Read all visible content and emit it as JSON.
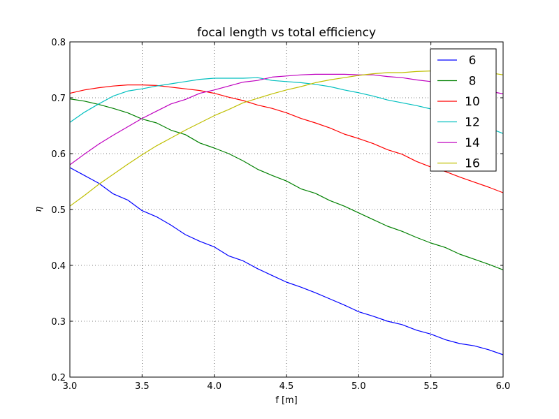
{
  "chart_data": {
    "type": "line",
    "title": "focal length vs total efficiency",
    "xlabel": "f [m]",
    "ylabel": "η",
    "xlim": [
      3.0,
      6.0
    ],
    "ylim": [
      0.2,
      0.8
    ],
    "xticks": [
      "3.0",
      "3.5",
      "4.0",
      "4.5",
      "5.0",
      "5.5",
      "6.0"
    ],
    "yticks": [
      "0.2",
      "0.3",
      "0.4",
      "0.5",
      "0.6",
      "0.7",
      "0.8"
    ],
    "grid": true,
    "legend_position": "top-right",
    "x": [
      3.0,
      3.1,
      3.2,
      3.3,
      3.4,
      3.5,
      3.6,
      3.7,
      3.8,
      3.9,
      4.0,
      4.1,
      4.2,
      4.3,
      4.4,
      4.5,
      4.6,
      4.7,
      4.8,
      4.9,
      5.0,
      5.1,
      5.2,
      5.3,
      5.4,
      5.5,
      5.6,
      5.7,
      5.8,
      5.9,
      6.0
    ],
    "series": [
      {
        "name": "6",
        "color": "#0000ff",
        "values": [
          0.575,
          0.561,
          0.547,
          0.528,
          0.517,
          0.498,
          0.487,
          0.472,
          0.455,
          0.443,
          0.433,
          0.417,
          0.408,
          0.394,
          0.382,
          0.37,
          0.361,
          0.351,
          0.34,
          0.329,
          0.317,
          0.309,
          0.3,
          0.294,
          0.284,
          0.277,
          0.267,
          0.26,
          0.256,
          0.249,
          0.24
        ]
      },
      {
        "name": "8",
        "color": "#008000",
        "values": [
          0.698,
          0.694,
          0.688,
          0.681,
          0.673,
          0.662,
          0.655,
          0.642,
          0.634,
          0.619,
          0.61,
          0.6,
          0.587,
          0.572,
          0.561,
          0.551,
          0.537,
          0.529,
          0.516,
          0.506,
          0.494,
          0.482,
          0.47,
          0.461,
          0.45,
          0.44,
          0.432,
          0.42,
          0.411,
          0.402,
          0.392
        ]
      },
      {
        "name": "10",
        "color": "#ff0000",
        "values": [
          0.708,
          0.714,
          0.718,
          0.721,
          0.723,
          0.723,
          0.722,
          0.719,
          0.716,
          0.713,
          0.708,
          0.701,
          0.695,
          0.687,
          0.681,
          0.673,
          0.663,
          0.655,
          0.646,
          0.635,
          0.627,
          0.618,
          0.607,
          0.599,
          0.586,
          0.576,
          0.568,
          0.558,
          0.549,
          0.54,
          0.53
        ]
      },
      {
        "name": "12",
        "color": "#00bfbf",
        "values": [
          0.656,
          0.674,
          0.689,
          0.703,
          0.712,
          0.716,
          0.721,
          0.725,
          0.729,
          0.733,
          0.735,
          0.735,
          0.735,
          0.736,
          0.731,
          0.729,
          0.727,
          0.724,
          0.72,
          0.714,
          0.709,
          0.703,
          0.696,
          0.691,
          0.686,
          0.68,
          0.672,
          0.664,
          0.656,
          0.646,
          0.636
        ]
      },
      {
        "name": "14",
        "color": "#bf00bf",
        "values": [
          0.58,
          0.599,
          0.617,
          0.633,
          0.648,
          0.663,
          0.676,
          0.689,
          0.697,
          0.708,
          0.714,
          0.721,
          0.728,
          0.731,
          0.737,
          0.739,
          0.741,
          0.742,
          0.742,
          0.742,
          0.741,
          0.741,
          0.738,
          0.736,
          0.732,
          0.729,
          0.725,
          0.721,
          0.716,
          0.712,
          0.707
        ]
      },
      {
        "name": "16",
        "color": "#bfbf00",
        "values": [
          0.506,
          0.525,
          0.545,
          0.563,
          0.581,
          0.598,
          0.614,
          0.628,
          0.642,
          0.655,
          0.668,
          0.679,
          0.691,
          0.699,
          0.707,
          0.714,
          0.72,
          0.727,
          0.732,
          0.736,
          0.74,
          0.743,
          0.745,
          0.745,
          0.747,
          0.748,
          0.748,
          0.747,
          0.746,
          0.745,
          0.741
        ]
      }
    ]
  }
}
